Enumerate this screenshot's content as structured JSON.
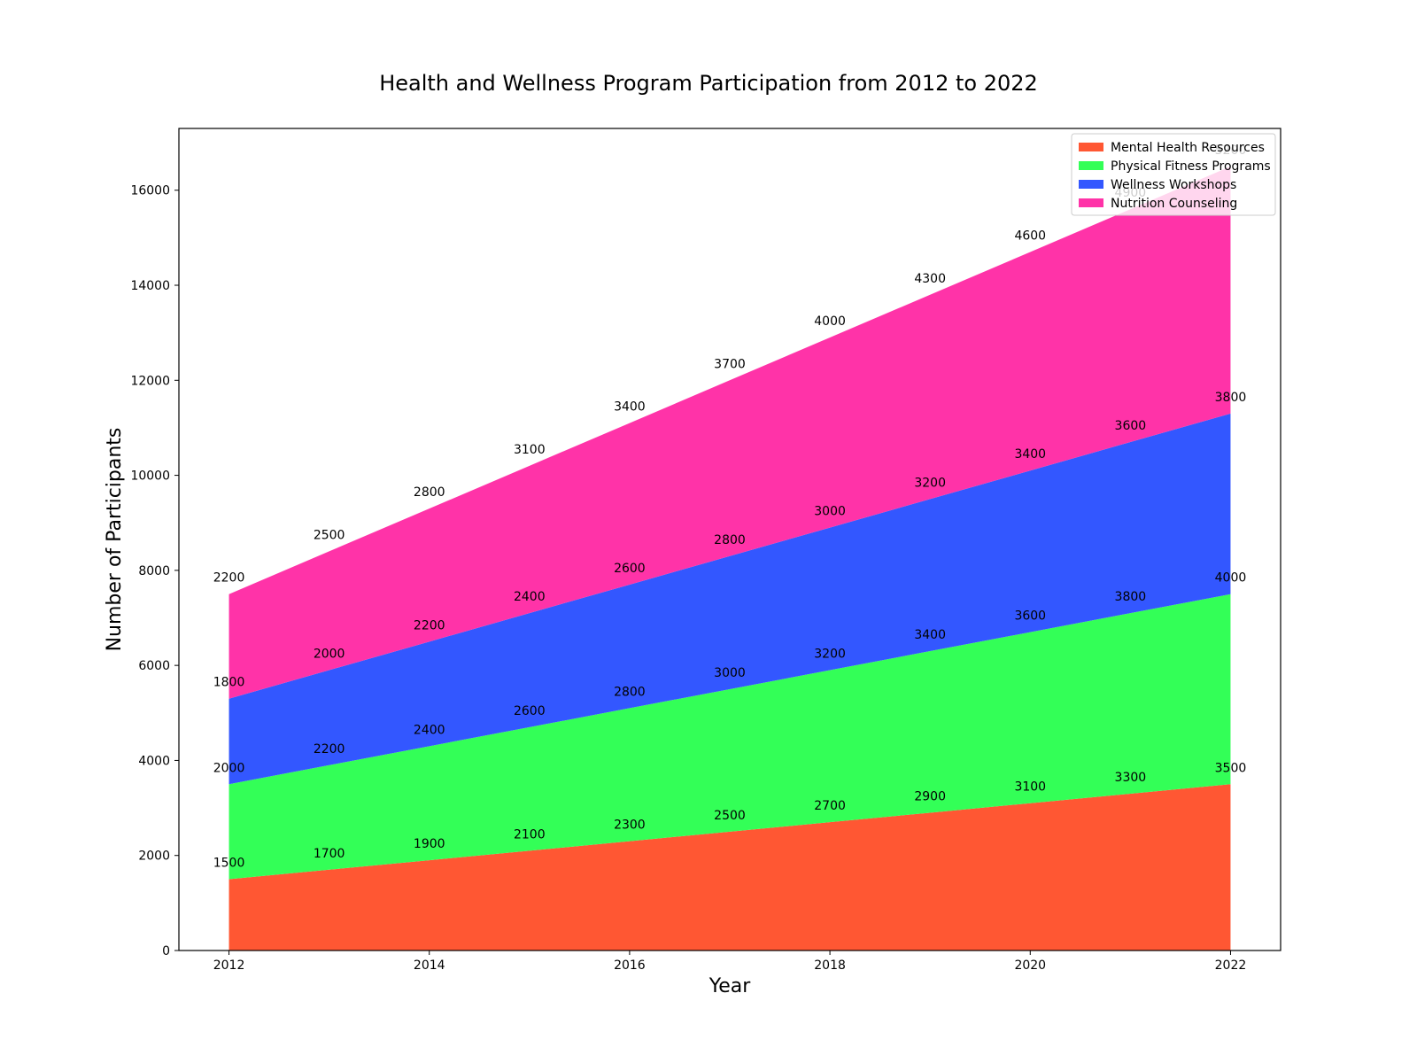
{
  "chart_data": {
    "type": "area",
    "stacked": true,
    "title": "Health and Wellness Program Participation from 2012 to 2022",
    "xlabel": "Year",
    "ylabel": "Number of Participants",
    "x": [
      2012,
      2013,
      2014,
      2015,
      2016,
      2017,
      2018,
      2019,
      2020,
      2021,
      2022
    ],
    "x_ticks": [
      "2012",
      "2014",
      "2016",
      "2018",
      "2020",
      "2022"
    ],
    "y_ticks": [
      "0",
      "2000",
      "4000",
      "6000",
      "8000",
      "10000",
      "12000",
      "14000",
      "16000"
    ],
    "xlim": [
      2011.5,
      2022.5
    ],
    "ylim": [
      0,
      17300
    ],
    "grid": false,
    "legend_position": "top-right",
    "series": [
      {
        "name": "Mental Health Resources",
        "color": "#FF5733",
        "values": [
          1500,
          1700,
          1900,
          2100,
          2300,
          2500,
          2700,
          2900,
          3100,
          3300,
          3500
        ]
      },
      {
        "name": "Physical Fitness Programs",
        "color": "#33FF57",
        "values": [
          2000,
          2200,
          2400,
          2600,
          2800,
          3000,
          3200,
          3400,
          3600,
          3800,
          4000
        ]
      },
      {
        "name": "Wellness Workshops",
        "color": "#3357FF",
        "values": [
          1800,
          2000,
          2200,
          2400,
          2600,
          2800,
          3000,
          3200,
          3400,
          3600,
          3800
        ]
      },
      {
        "name": "Nutrition Counseling",
        "color": "#FF33A8",
        "values": [
          2200,
          2500,
          2800,
          3100,
          3400,
          3700,
          4000,
          4300,
          4600,
          4900,
          5200
        ]
      }
    ]
  }
}
